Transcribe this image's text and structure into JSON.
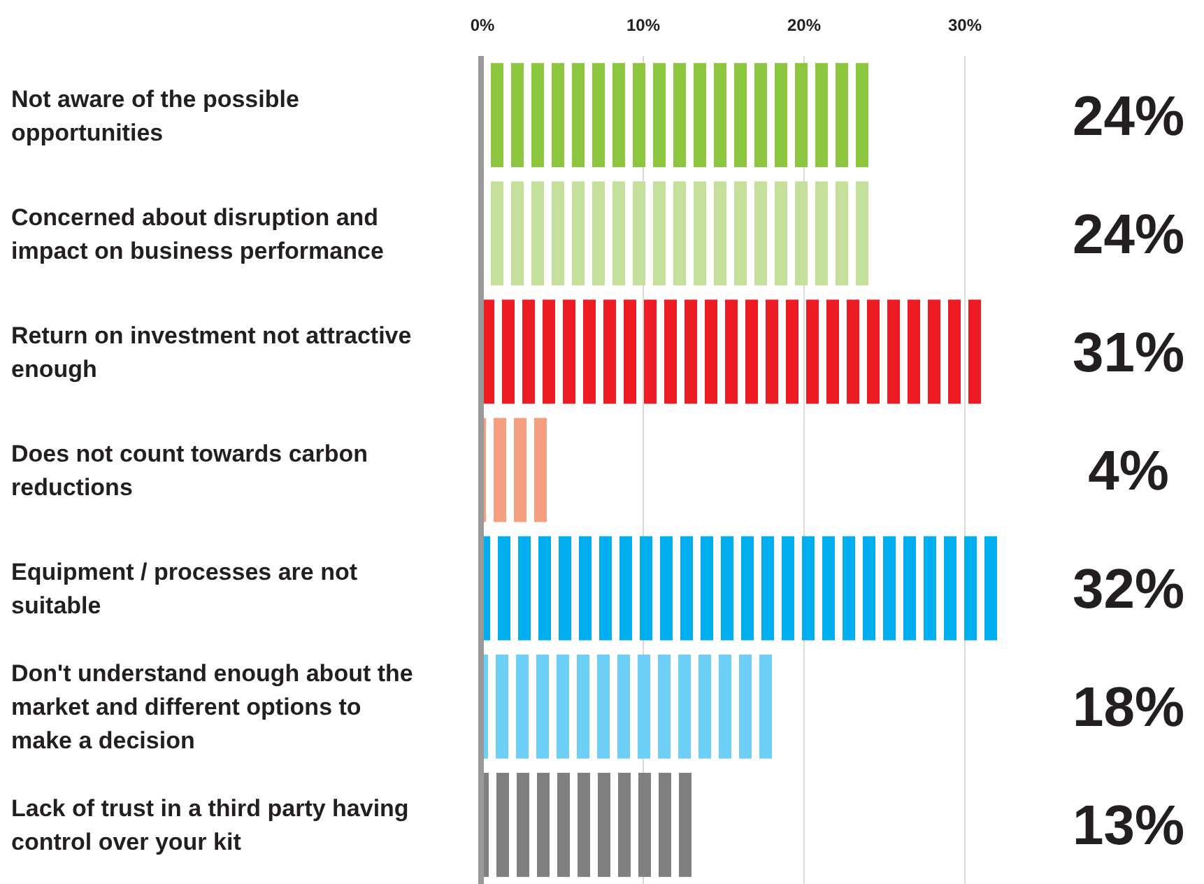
{
  "chart_data": {
    "type": "bar",
    "orientation": "horizontal",
    "categories": [
      "Not aware of the possible opportunities",
      "Concerned about disruption and impact on business performance",
      "Return on investment not attractive enough",
      "Does not count towards carbon reductions",
      "Equipment / processes are not suitable",
      "Don't understand enough about the market and different options to make a decision",
      "Lack of trust in a third party having control over your kit"
    ],
    "values": [
      24,
      24,
      31,
      4,
      32,
      18,
      13
    ],
    "colors": [
      "#8cc63f",
      "#c5e09b",
      "#ed1c24",
      "#f4a080",
      "#00aeef",
      "#6dcff6",
      "#808080"
    ],
    "value_labels": [
      "24%",
      "24%",
      "31%",
      "4%",
      "32%",
      "18%",
      "13%"
    ],
    "xlim": [
      0,
      32
    ],
    "xticks": [
      {
        "value": 0,
        "label": "0%"
      },
      {
        "value": 10,
        "label": "10%"
      },
      {
        "value": 20,
        "label": "20%"
      },
      {
        "value": 30,
        "label": "30%"
      }
    ],
    "grid": "x"
  }
}
